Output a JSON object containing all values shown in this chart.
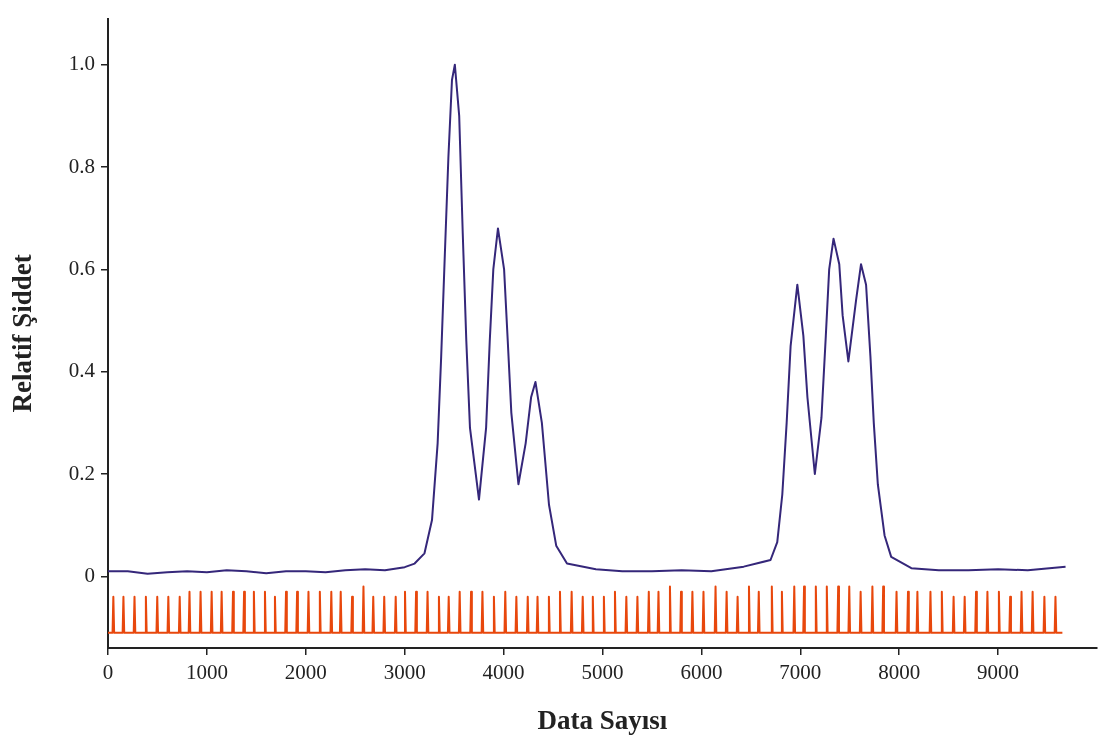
{
  "chart_data": {
    "type": "line",
    "xlabel": "Data Sayısı",
    "ylabel": "Relatif Şiddet",
    "xlim": [
      0,
      10000
    ],
    "xticks": [
      0,
      1000,
      2000,
      3000,
      4000,
      5000,
      6000,
      7000,
      8000,
      9000
    ],
    "ylim": [
      -0.14,
      1.09
    ],
    "yticks": [
      0,
      {
        "value": 0.2,
        "label": "0.2"
      },
      {
        "value": 0.4,
        "label": "0.4"
      },
      {
        "value": 0.6,
        "label": "0.6"
      },
      {
        "value": 0.8,
        "label": "0.8"
      },
      {
        "value": 1,
        "label": "1.0"
      }
    ],
    "legend": false,
    "marker": "none",
    "line_style": "solid",
    "series": [
      {
        "color": "#35277a",
        "x": [
          0,
          200,
          400,
          600,
          800,
          1000,
          1200,
          1400,
          1600,
          1800,
          2000,
          2200,
          2400,
          2600,
          2800,
          3000,
          3100,
          3200,
          3276,
          3333,
          3369,
          3406,
          3442,
          3478,
          3507,
          3551,
          3587,
          3623,
          3660,
          3751,
          3823,
          3860,
          3896,
          3943,
          4005,
          4042,
          4078,
          4150,
          4223,
          4278,
          4322,
          4387,
          4423,
          4459,
          4532,
          4641,
          4933,
          5200,
          5500,
          5800,
          6100,
          6428,
          6699,
          6767,
          6818,
          6862,
          6902,
          6970,
          7031,
          7072,
          7147,
          7214,
          7258,
          7292,
          7336,
          7394,
          7428,
          7486,
          7564,
          7614,
          7665,
          7709,
          7743,
          7784,
          7852,
          7919,
          8123,
          8400,
          8700,
          9000,
          9300,
          9682
        ],
        "values": [
          0.01,
          0.01,
          0.005,
          0.008,
          0.01,
          0.008,
          0.012,
          0.01,
          0.006,
          0.01,
          0.01,
          0.008,
          0.012,
          0.014,
          0.012,
          0.018,
          0.025,
          0.045,
          0.11,
          0.26,
          0.43,
          0.63,
          0.82,
          0.97,
          1.0,
          0.9,
          0.67,
          0.46,
          0.29,
          0.15,
          0.29,
          0.46,
          0.6,
          0.68,
          0.6,
          0.46,
          0.32,
          0.18,
          0.26,
          0.35,
          0.38,
          0.3,
          0.22,
          0.14,
          0.06,
          0.025,
          0.014,
          0.01,
          0.01,
          0.012,
          0.01,
          0.019,
          0.032,
          0.067,
          0.16,
          0.3,
          0.45,
          0.57,
          0.47,
          0.35,
          0.2,
          0.31,
          0.47,
          0.6,
          0.66,
          0.61,
          0.51,
          0.42,
          0.54,
          0.61,
          0.57,
          0.43,
          0.3,
          0.18,
          0.08,
          0.038,
          0.016,
          0.012,
          0.012,
          0.014,
          0.012,
          0.019
        ]
      },
      {
        "color": "#e8470c",
        "x": [
          0,
          46,
          54,
          62,
          148,
          156,
          164,
          260,
          268,
          276,
          375,
          383,
          391,
          490,
          498,
          506,
          602,
          610,
          618,
          717,
          725,
          733,
          816,
          824,
          832,
          928,
          936,
          944,
          1040,
          1048,
          1056,
          1141,
          1149,
          1157,
          1256,
          1264,
          1272,
          1368,
          1376,
          1384,
          1467,
          1475,
          1483,
          1579,
          1587,
          1595,
          1680,
          1688,
          1696,
          1792,
          1800,
          1808,
          1904,
          1912,
          1920,
          2019,
          2027,
          2035,
          2134,
          2142,
          2150,
          2250,
          2258,
          2266,
          2345,
          2353,
          2361,
          2460,
          2468,
          2476,
          2575,
          2583,
          2591,
          2674,
          2682,
          2690,
          2785,
          2793,
          2801,
          2901,
          2909,
          2917,
          2995,
          3003,
          3011,
          3107,
          3115,
          3123,
          3223,
          3231,
          3239,
          3338,
          3346,
          3354,
          3437,
          3445,
          3453,
          3548,
          3556,
          3564,
          3663,
          3671,
          3679,
          3778,
          3786,
          3794,
          3894,
          3902,
          3910,
          4009,
          4017,
          4025,
          4121,
          4129,
          4137,
          4236,
          4244,
          4252,
          4335,
          4343,
          4351,
          4450,
          4458,
          4466,
          4562,
          4570,
          4578,
          4680,
          4688,
          4696,
          4792,
          4800,
          4808,
          4894,
          4902,
          4910,
          5006,
          5014,
          5022,
          5118,
          5126,
          5134,
          5233,
          5241,
          5249,
          5345,
          5353,
          5361,
          5460,
          5468,
          5476,
          5558,
          5566,
          5574,
          5674,
          5682,
          5690,
          5786,
          5794,
          5802,
          5901,
          5909,
          5917,
          6013,
          6021,
          6029,
          6135,
          6143,
          6151,
          6247,
          6255,
          6263,
          6358,
          6366,
          6374,
          6473,
          6481,
          6489,
          6572,
          6580,
          6588,
          6704,
          6712,
          6720,
          6806,
          6814,
          6822,
          6931,
          6939,
          6947,
          7030,
          7038,
          7046,
          7149,
          7157,
          7165,
          7260,
          7268,
          7276,
          7375,
          7383,
          7391,
          7487,
          7495,
          7503,
          7602,
          7610,
          7618,
          7721,
          7729,
          7737,
          7830,
          7838,
          7846,
          7965,
          7973,
          7981,
          8081,
          8089,
          8097,
          8176,
          8184,
          8192,
          8308,
          8316,
          8324,
          8423,
          8431,
          8439,
          8542,
          8550,
          8558,
          8654,
          8662,
          8670,
          8769,
          8777,
          8785,
          8884,
          8892,
          8900,
          9000,
          9008,
          9016,
          9114,
          9122,
          9130,
          9229,
          9237,
          9245,
          9341,
          9349,
          9357,
          9460,
          9468,
          9476,
          9572,
          9580,
          9588,
          9650
        ],
        "values": [
          -0.11,
          -0.11,
          -0.04,
          -0.11,
          -0.11,
          -0.04,
          -0.11,
          -0.11,
          -0.04,
          -0.11,
          -0.11,
          -0.04,
          -0.11,
          -0.11,
          -0.04,
          -0.11,
          -0.11,
          -0.04,
          -0.11,
          -0.11,
          -0.04,
          -0.11,
          -0.11,
          -0.03,
          -0.11,
          -0.11,
          -0.03,
          -0.11,
          -0.11,
          -0.03,
          -0.11,
          -0.11,
          -0.03,
          -0.11,
          -0.11,
          -0.03,
          -0.11,
          -0.11,
          -0.03,
          -0.11,
          -0.11,
          -0.03,
          -0.11,
          -0.11,
          -0.03,
          -0.11,
          -0.11,
          -0.04,
          -0.11,
          -0.11,
          -0.03,
          -0.11,
          -0.11,
          -0.03,
          -0.11,
          -0.11,
          -0.03,
          -0.11,
          -0.11,
          -0.03,
          -0.11,
          -0.11,
          -0.03,
          -0.11,
          -0.11,
          -0.03,
          -0.11,
          -0.11,
          -0.04,
          -0.11,
          -0.11,
          -0.02,
          -0.11,
          -0.11,
          -0.04,
          -0.11,
          -0.11,
          -0.04,
          -0.11,
          -0.11,
          -0.04,
          -0.11,
          -0.11,
          -0.03,
          -0.11,
          -0.11,
          -0.03,
          -0.11,
          -0.11,
          -0.03,
          -0.11,
          -0.11,
          -0.04,
          -0.11,
          -0.11,
          -0.04,
          -0.11,
          -0.11,
          -0.03,
          -0.11,
          -0.11,
          -0.03,
          -0.11,
          -0.11,
          -0.03,
          -0.11,
          -0.11,
          -0.04,
          -0.11,
          -0.11,
          -0.03,
          -0.11,
          -0.11,
          -0.04,
          -0.11,
          -0.11,
          -0.04,
          -0.11,
          -0.11,
          -0.04,
          -0.11,
          -0.11,
          -0.04,
          -0.11,
          -0.11,
          -0.03,
          -0.11,
          -0.11,
          -0.03,
          -0.11,
          -0.11,
          -0.04,
          -0.11,
          -0.11,
          -0.04,
          -0.11,
          -0.11,
          -0.04,
          -0.11,
          -0.11,
          -0.03,
          -0.11,
          -0.11,
          -0.04,
          -0.11,
          -0.11,
          -0.04,
          -0.11,
          -0.11,
          -0.03,
          -0.11,
          -0.11,
          -0.03,
          -0.11,
          -0.11,
          -0.02,
          -0.11,
          -0.11,
          -0.03,
          -0.11,
          -0.11,
          -0.03,
          -0.11,
          -0.11,
          -0.03,
          -0.11,
          -0.11,
          -0.02,
          -0.11,
          -0.11,
          -0.03,
          -0.11,
          -0.11,
          -0.04,
          -0.11,
          -0.11,
          -0.02,
          -0.11,
          -0.11,
          -0.03,
          -0.11,
          -0.11,
          -0.02,
          -0.11,
          -0.11,
          -0.03,
          -0.11,
          -0.11,
          -0.02,
          -0.11,
          -0.11,
          -0.02,
          -0.11,
          -0.11,
          -0.02,
          -0.11,
          -0.11,
          -0.02,
          -0.11,
          -0.11,
          -0.02,
          -0.11,
          -0.11,
          -0.02,
          -0.11,
          -0.11,
          -0.03,
          -0.11,
          -0.11,
          -0.02,
          -0.11,
          -0.11,
          -0.02,
          -0.11,
          -0.11,
          -0.03,
          -0.11,
          -0.11,
          -0.03,
          -0.11,
          -0.11,
          -0.03,
          -0.11,
          -0.11,
          -0.03,
          -0.11,
          -0.11,
          -0.03,
          -0.11,
          -0.11,
          -0.04,
          -0.11,
          -0.11,
          -0.04,
          -0.11,
          -0.11,
          -0.03,
          -0.11,
          -0.11,
          -0.03,
          -0.11,
          -0.11,
          -0.03,
          -0.11,
          -0.11,
          -0.04,
          -0.11,
          -0.11,
          -0.03,
          -0.11,
          -0.11,
          -0.03,
          -0.11,
          -0.11,
          -0.04,
          -0.11,
          -0.11,
          -0.04,
          -0.11,
          -0.11
        ]
      }
    ]
  }
}
